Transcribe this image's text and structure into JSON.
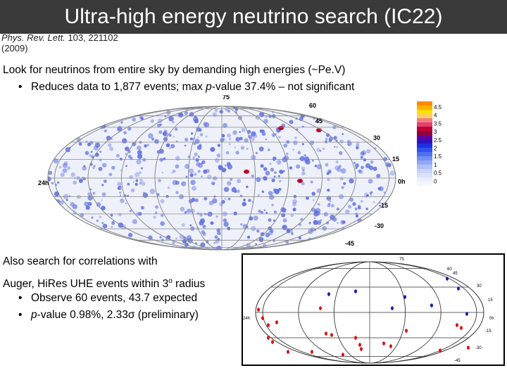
{
  "slide": {
    "title": "Ultra-high energy neutrino search (IC22)",
    "citation": {
      "journal": "Phys. Rev. Lett.",
      "ref": "103, 221102",
      "year": "(2009)"
    },
    "bullet_main": "Look for neutrinos from entire sky by demanding high energies (~Pe.V)",
    "bullet_sub": {
      "marker": "•",
      "before": "Reduces data to 1,877 events; max ",
      "p": "p",
      "after": "-value 37.4% – not significant"
    },
    "also": "Also search for correlations with",
    "auger": {
      "before": "Auger, HiRes UHE events within 3",
      "sup": "o",
      "after": " radius"
    },
    "sub_a": {
      "marker": "•",
      "text": "Observe 60 events, 43.7 expected"
    },
    "sub_b": {
      "marker": "•",
      "p": "p",
      "text": "-value 0.98%, 2.33σ (preliminary)"
    }
  },
  "skymap_main": {
    "dec_labels": [
      "75",
      "60",
      "45",
      "30",
      "15",
      "0h",
      "-15",
      "-30",
      "-45"
    ],
    "ra_label_left": "24h",
    "ra_label_right": "0h",
    "colorbar_ticks": [
      "4.5",
      "4",
      "3.5",
      "3",
      "2.5",
      "2",
      "1.5",
      "1",
      "0.5",
      "0"
    ],
    "colors": {
      "map_background": "#eef1fa",
      "hotspot_low": "#6070e0",
      "hotspot_high": "#c00020",
      "grid": "#888888"
    }
  },
  "skymap_correlation": {
    "dec_labels": [
      "75",
      "60",
      "45",
      "30",
      "15",
      "0h",
      "-15",
      "-30",
      "-45"
    ],
    "ra_label_left": "24h",
    "colors": {
      "auger_events": "#dd1111",
      "hires_events": "#1122aa",
      "grid": "#333333"
    }
  }
}
